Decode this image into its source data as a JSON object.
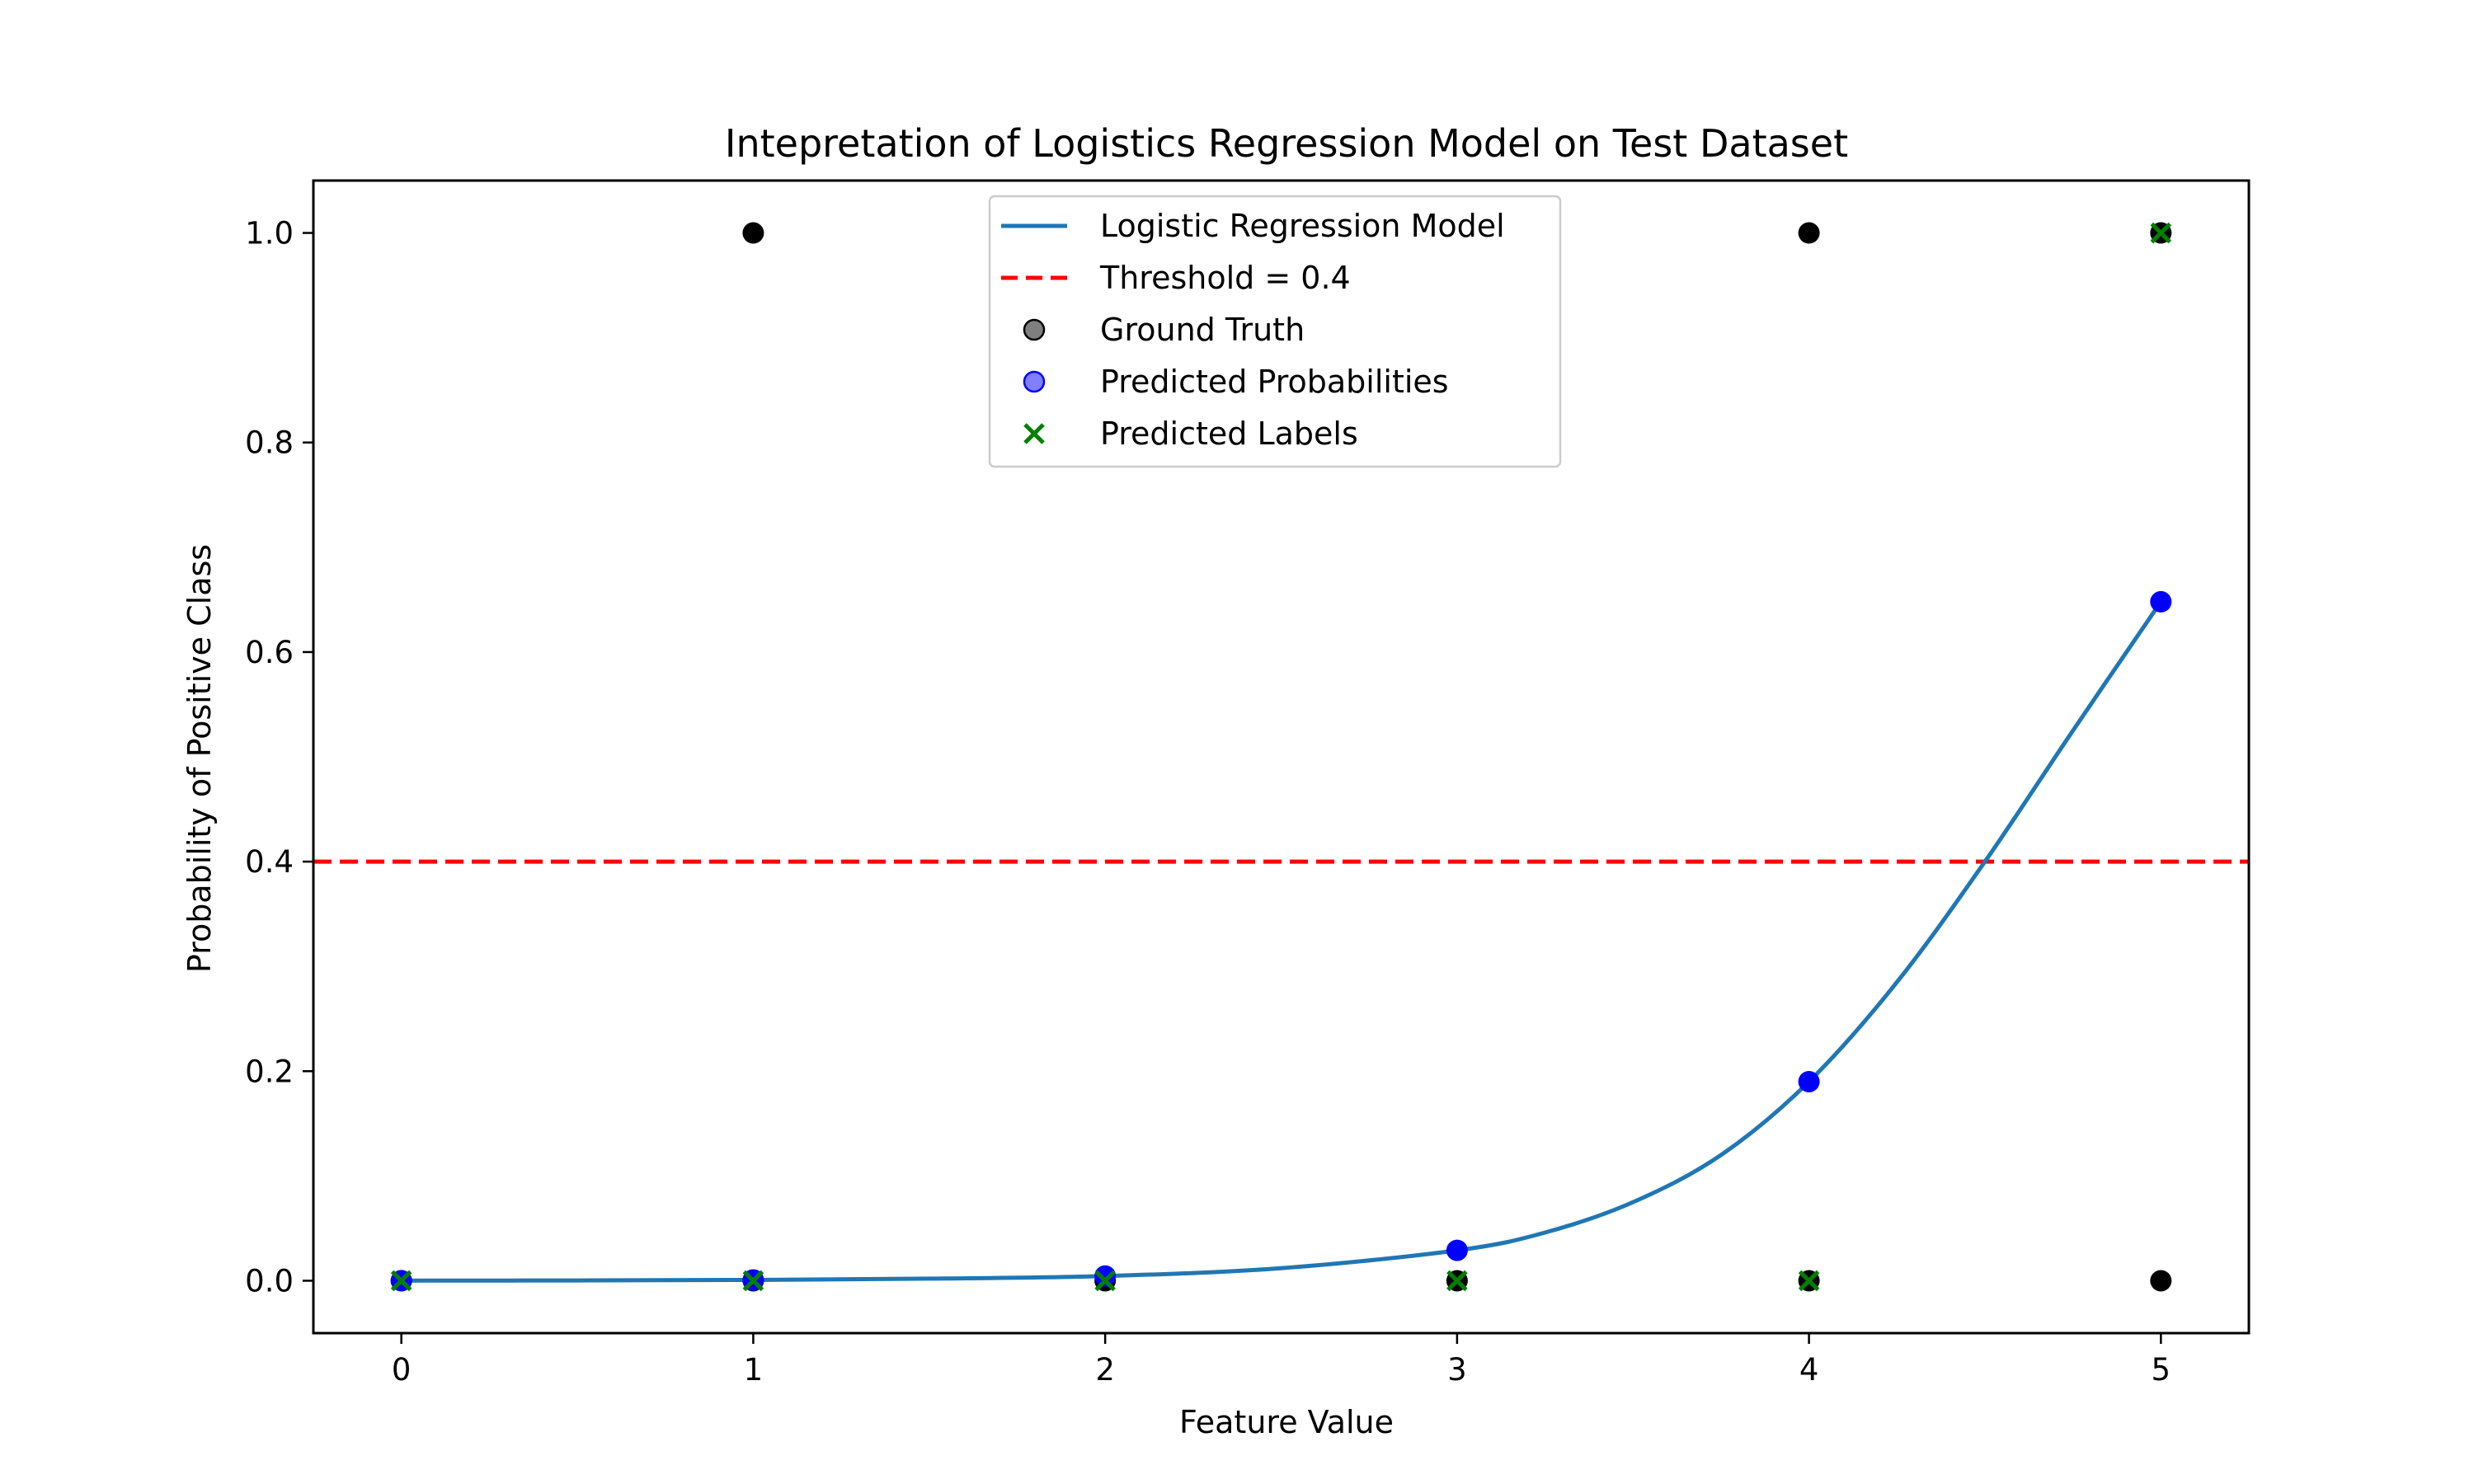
{
  "chart_data": {
    "type": "scatter",
    "title": "Intepretation of Logistics Regression Model on Test Dataset",
    "xlabel": "Feature Value",
    "ylabel": "Probability of Positive Class",
    "xlim": [
      -0.25,
      5.25
    ],
    "ylim": [
      -0.05,
      1.05
    ],
    "xticks": [
      0,
      1,
      2,
      3,
      4,
      5
    ],
    "yticks": [
      0.0,
      0.2,
      0.4,
      0.6,
      0.8,
      1.0
    ],
    "xtick_labels": [
      "0",
      "1",
      "2",
      "3",
      "4",
      "5"
    ],
    "ytick_labels": [
      "0.0",
      "0.2",
      "0.4",
      "0.6",
      "0.8",
      "1.0"
    ],
    "grid": false,
    "legend_position": "top-center",
    "colors": {
      "model": "#1f77b4",
      "threshold": "#ff0000",
      "ground_truth": "#000000",
      "predicted_probabilities": "#0000ff",
      "predicted_labels": "#008000"
    },
    "model_curve": {
      "name": "Logistic Regression Model",
      "x": [
        0,
        0.5,
        1,
        1.5,
        2,
        2.5,
        3,
        3.25,
        3.5,
        3.75,
        4,
        4.25,
        4.5,
        4.75,
        5
      ],
      "y": [
        0.0001,
        0.0003,
        0.0008,
        0.002,
        0.0045,
        0.012,
        0.029,
        0.046,
        0.075,
        0.12,
        0.19,
        0.285,
        0.4,
        0.525,
        0.648
      ]
    },
    "threshold": {
      "name": "Threshold = 0.4",
      "value": 0.4
    },
    "series": [
      {
        "name": "Ground Truth",
        "x": [
          0,
          1,
          1,
          2,
          3,
          4,
          4,
          5,
          5
        ],
        "y": [
          0,
          0,
          1,
          0,
          0,
          0,
          1,
          0,
          1
        ]
      },
      {
        "name": "Predicted Probabilities",
        "x": [
          0,
          1,
          2,
          3,
          4,
          5
        ],
        "y": [
          0.0001,
          0.0008,
          0.0045,
          0.029,
          0.19,
          0.648
        ]
      },
      {
        "name": "Predicted Labels",
        "x": [
          0,
          1,
          2,
          3,
          4,
          5
        ],
        "y": [
          0,
          0,
          0,
          0,
          0,
          1
        ]
      }
    ],
    "legend": [
      "Logistic Regression Model",
      "Threshold = 0.4",
      "Ground Truth",
      "Predicted Probabilities",
      "Predicted Labels"
    ]
  }
}
